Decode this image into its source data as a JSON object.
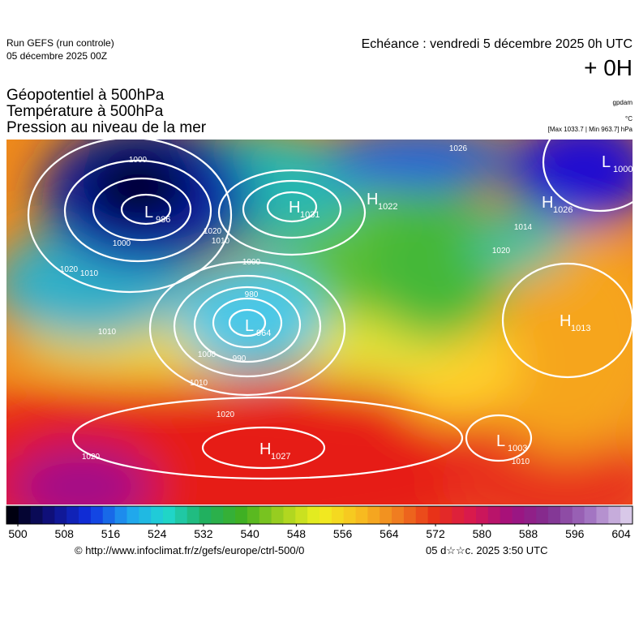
{
  "header": {
    "run": "Run GEFS (run controle)",
    "run_date": "05 décembre 2025 00Z",
    "echeance": "Echéance : vendredi 5 décembre 2025 0h UTC",
    "offset": "+ 0H"
  },
  "fields": [
    "Géopotentiel à 500hPa",
    "Température à 500hPa",
    "Pression au niveau de la mer"
  ],
  "units": {
    "geopotential": "gpdam",
    "temperature": "°C",
    "pressure": "[Max 1033.7 | Min 963.7] hPa"
  },
  "centers": [
    {
      "type": "L",
      "value": "986"
    },
    {
      "type": "H",
      "value": "1031"
    },
    {
      "type": "H",
      "value": "1022"
    },
    {
      "type": "L",
      "value": "1000"
    },
    {
      "type": "H",
      "value": "1026"
    },
    {
      "type": "L",
      "value": "964"
    },
    {
      "type": "H",
      "value": "1027"
    },
    {
      "type": "H",
      "value": "1013"
    },
    {
      "type": "L",
      "value": "1003"
    }
  ],
  "contour_labels": [
    "1000",
    "1000",
    "1020",
    "1010",
    "1000",
    "1010",
    "1020",
    "1000",
    "990",
    "980",
    "1010",
    "1020",
    "1020",
    "1014",
    "1020",
    "1010",
    "1026",
    "1010"
  ],
  "colorbar": {
    "ticks": [
      500,
      508,
      516,
      524,
      532,
      540,
      548,
      556,
      564,
      572,
      580,
      588,
      596,
      604
    ]
  },
  "footer": {
    "source": "© http://www.infoclimat.fr/z/gefs/europe/ctrl-500/0",
    "generated": "05 d☆☆c. 2025  3:50 UTC"
  }
}
